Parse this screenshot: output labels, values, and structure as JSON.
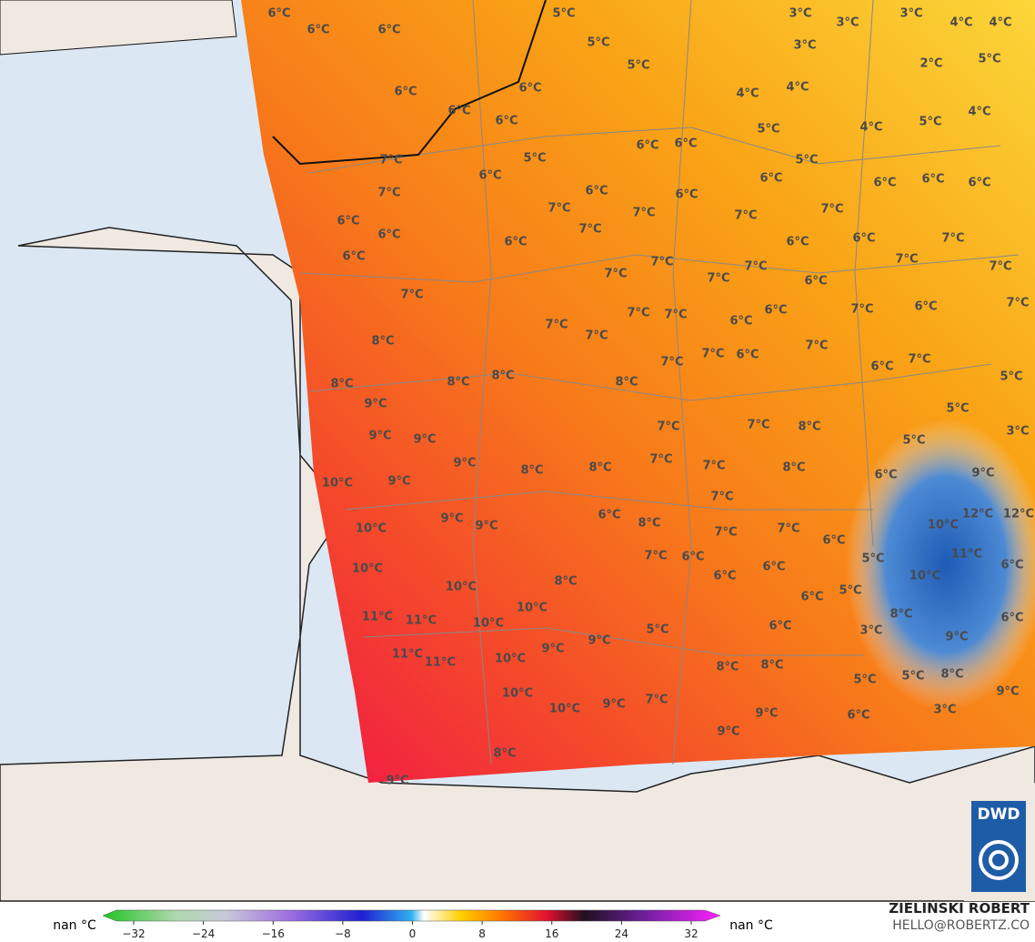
{
  "map_labels": [
    "6°C",
    "6°C",
    "6°C",
    "5°C",
    "5°C",
    "5°C",
    "3°C",
    "3°C",
    "3°C",
    "4°C",
    "4°C",
    "3°C",
    "2°C",
    "5°C",
    "4°C",
    "4°C",
    "6°C",
    "6°C",
    "6°C",
    "6°C",
    "4°C",
    "5°C",
    "4°C",
    "5°C",
    "6°C",
    "6°C",
    "7°C",
    "5°C",
    "5°C",
    "6°C",
    "7°C",
    "6°C",
    "6°C",
    "6°C",
    "6°C",
    "6°C",
    "6°C",
    "7°C",
    "7°C",
    "7°C",
    "7°C",
    "6°C",
    "6°C",
    "7°C",
    "6°C",
    "6°C",
    "6°C",
    "7°C",
    "6°C",
    "7°C",
    "7°C",
    "7°C",
    "7°C",
    "6°C",
    "7°C",
    "7°C",
    "7°C",
    "7°C",
    "7°C",
    "6°C",
    "7°C",
    "6°C",
    "7°C",
    "7°C",
    "7°C",
    "6°C",
    "8°C",
    "7°C",
    "6°C",
    "7°C",
    "7°C",
    "6°C",
    "7°C",
    "5°C",
    "8°C",
    "8°C",
    "8°C",
    "8°C",
    "9°C",
    "5°C",
    "9°C",
    "9°C",
    "7°C",
    "7°C",
    "8°C",
    "3°C",
    "5°C",
    "9°C",
    "8°C",
    "8°C",
    "7°C",
    "7°C",
    "8°C",
    "10°C",
    "9°C",
    "6°C",
    "9°C",
    "7°C",
    "9°C",
    "9°C",
    "6°C",
    "8°C",
    "7°C",
    "7°C",
    "10°C",
    "10°C",
    "12°C",
    "12°C",
    "6°C",
    "7°C",
    "6°C",
    "11°C",
    "10°C",
    "8°C",
    "6°C",
    "6°C",
    "10°C",
    "5°C",
    "6°C",
    "10°C",
    "5°C",
    "6°C",
    "10°C",
    "11°C",
    "11°C",
    "10°C",
    "5°C",
    "6°C",
    "8°C",
    "3°C",
    "6°C",
    "9°C",
    "9°C",
    "9°C",
    "11°C",
    "11°C",
    "10°C",
    "8°C",
    "8°C",
    "5°C",
    "5°C",
    "8°C",
    "9°C",
    "10°C",
    "7°C",
    "10°C",
    "9°C",
    "9°C",
    "6°C",
    "3°C",
    "9°C",
    "8°C",
    "9°C"
  ],
  "colorbar": {
    "left_label": "nan °C",
    "right_label": "nan °C",
    "ticks": [
      {
        "value": -32,
        "label": "−32"
      },
      {
        "value": -24,
        "label": "−24"
      },
      {
        "value": -16,
        "label": "−16"
      },
      {
        "value": -8,
        "label": "−8"
      },
      0,
      8,
      16,
      24,
      32
    ]
  },
  "credits": {
    "author": "ZIELIŃSKI ROBERT",
    "contact": "HELLO@ROBERTZ.CO"
  },
  "logo": "DWD"
}
